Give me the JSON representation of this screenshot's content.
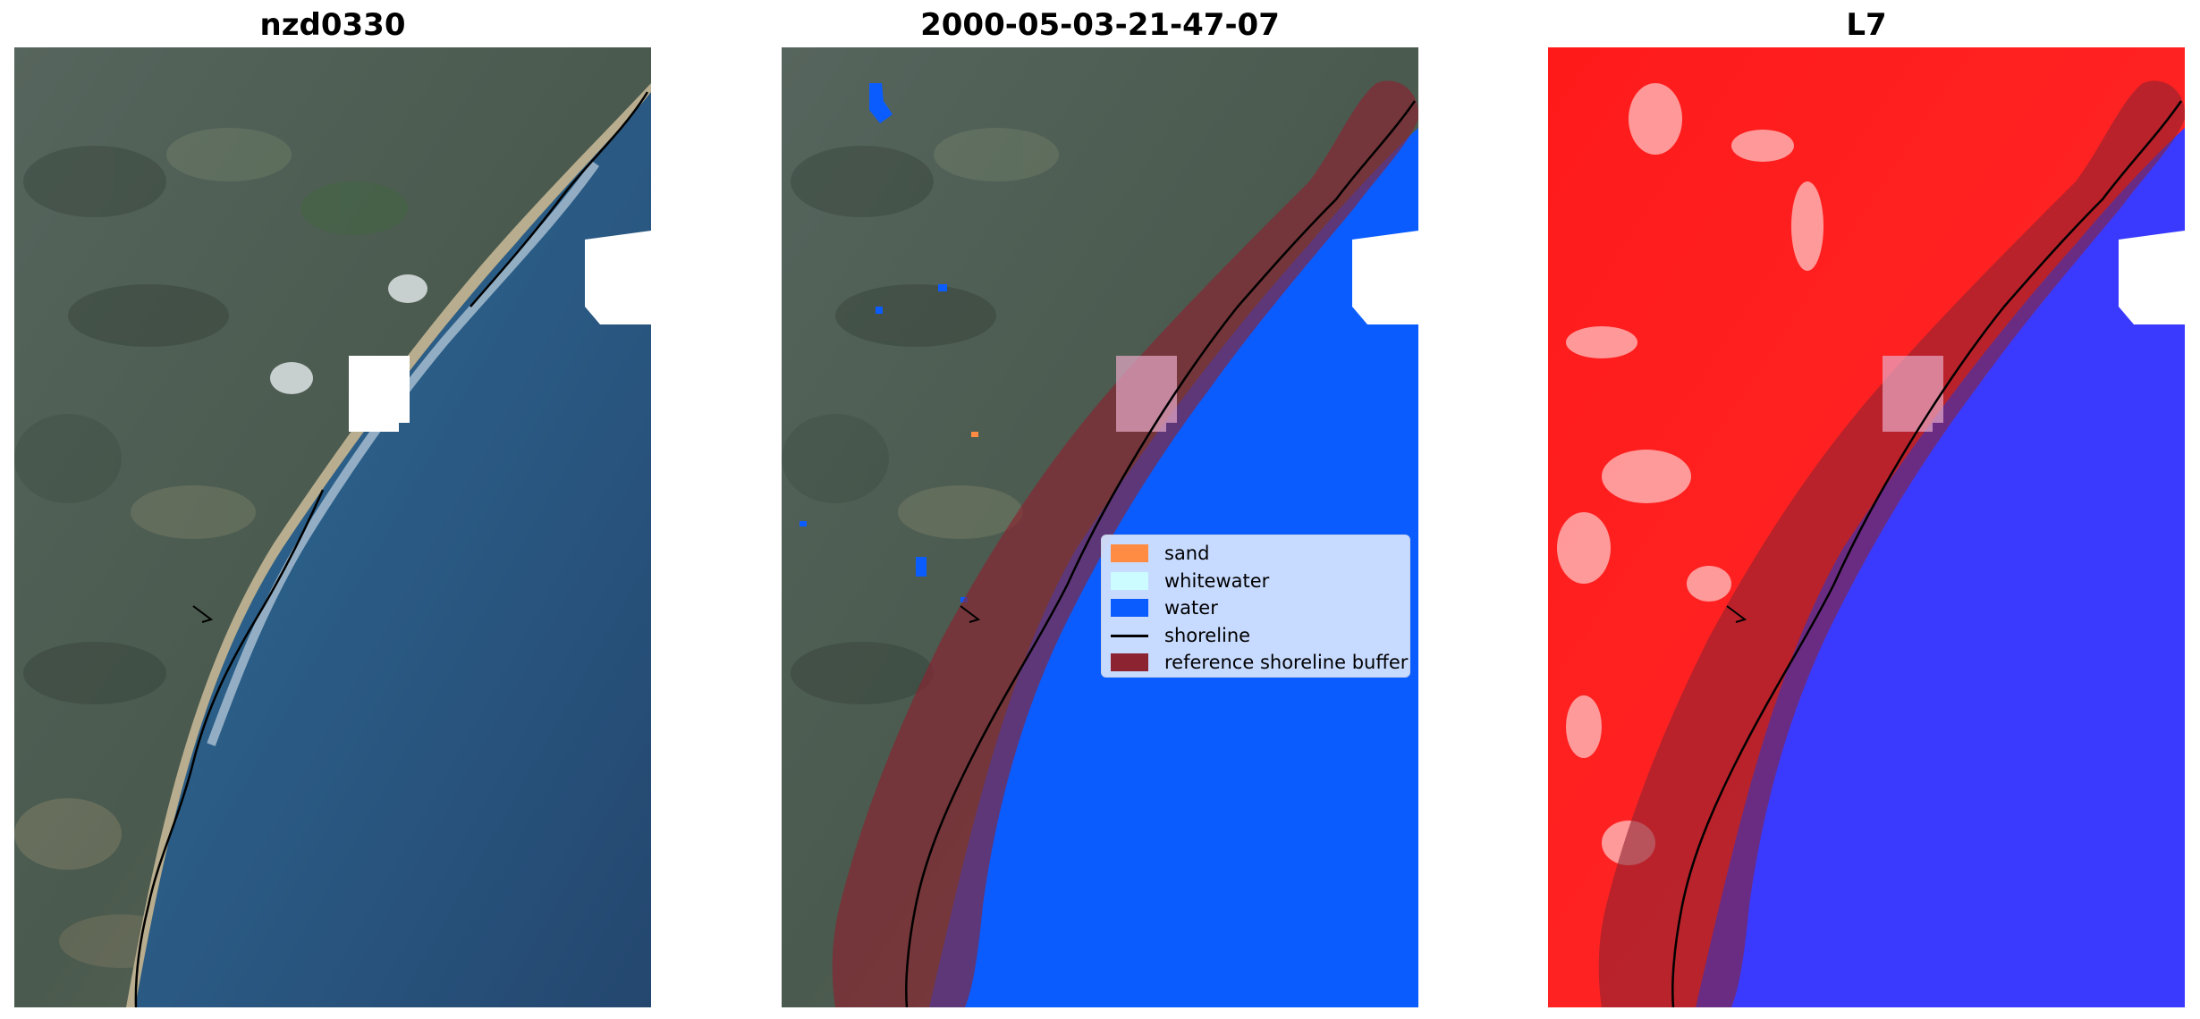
{
  "panels": [
    {
      "title": "nzd0330"
    },
    {
      "title": "2000-05-03-21-47-07"
    },
    {
      "title": "L7"
    }
  ],
  "legend": {
    "items": [
      {
        "label": "sand",
        "color": "#ff8c42",
        "kind": "patch"
      },
      {
        "label": "whitewater",
        "color": "#ccfcff",
        "kind": "patch"
      },
      {
        "label": "water",
        "color": "#0a5cff",
        "kind": "patch"
      },
      {
        "label": "shoreline",
        "color": "#000000",
        "kind": "line"
      },
      {
        "label": "reference shoreline buffer",
        "color": "#8b2330",
        "kind": "patch"
      }
    ]
  },
  "colors": {
    "land_rgb": "#4f5c55",
    "ocean_rgb": "#2a5278",
    "water_class": "#0a5cff",
    "buffer": "#8b2330",
    "index_land": "#ff1a1a",
    "index_water": "#3a3aff",
    "cloud_mask": "#ffffff"
  }
}
